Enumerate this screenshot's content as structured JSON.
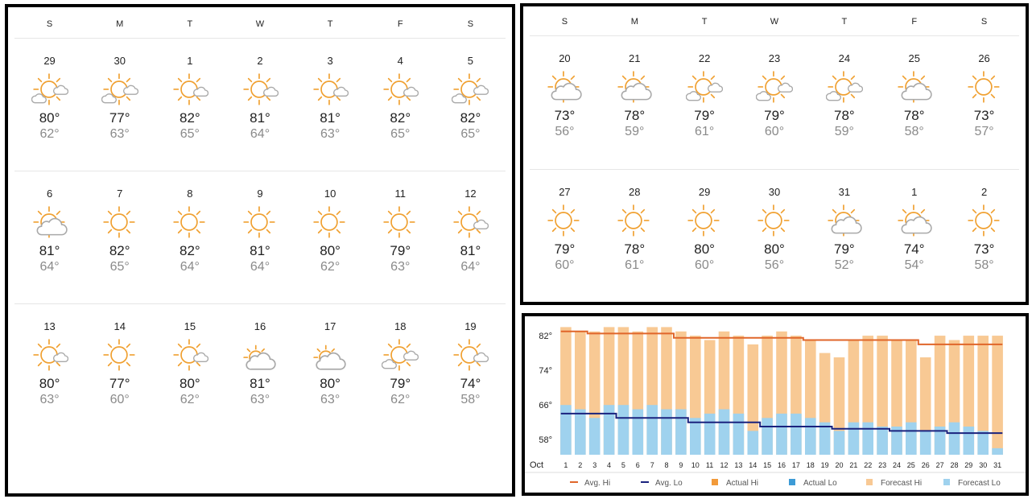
{
  "calendar_left": {
    "weekdays": [
      "S",
      "M",
      "T",
      "W",
      "T",
      "F",
      "S"
    ],
    "weeks": [
      [
        {
          "day": "29",
          "icon": "partly-cloudy-icon",
          "hi": "80°",
          "lo": "62°"
        },
        {
          "day": "30",
          "icon": "partly-cloudy-icon",
          "hi": "77°",
          "lo": "63°"
        },
        {
          "day": "1",
          "icon": "mostly-sunny-icon",
          "hi": "82°",
          "lo": "65°"
        },
        {
          "day": "2",
          "icon": "mostly-sunny-icon",
          "hi": "81°",
          "lo": "64°"
        },
        {
          "day": "3",
          "icon": "mostly-sunny-icon",
          "hi": "81°",
          "lo": "63°"
        },
        {
          "day": "4",
          "icon": "mostly-sunny-icon",
          "hi": "82°",
          "lo": "65°"
        },
        {
          "day": "5",
          "icon": "partly-cloudy-icon",
          "hi": "82°",
          "lo": "65°"
        }
      ],
      [
        {
          "day": "6",
          "icon": "sun-cloud-icon",
          "hi": "81°",
          "lo": "64°"
        },
        {
          "day": "7",
          "icon": "sunny-icon",
          "hi": "82°",
          "lo": "65°"
        },
        {
          "day": "8",
          "icon": "sunny-icon",
          "hi": "82°",
          "lo": "64°"
        },
        {
          "day": "9",
          "icon": "sunny-icon",
          "hi": "81°",
          "lo": "64°"
        },
        {
          "day": "10",
          "icon": "sunny-icon",
          "hi": "80°",
          "lo": "62°"
        },
        {
          "day": "11",
          "icon": "sunny-icon",
          "hi": "79°",
          "lo": "63°"
        },
        {
          "day": "12",
          "icon": "mostly-sunny-icon",
          "hi": "81°",
          "lo": "64°"
        }
      ],
      [
        {
          "day": "13",
          "icon": "mostly-sunny-icon",
          "hi": "80°",
          "lo": "63°"
        },
        {
          "day": "14",
          "icon": "sunny-icon",
          "hi": "77°",
          "lo": "60°"
        },
        {
          "day": "15",
          "icon": "mostly-sunny-icon",
          "hi": "80°",
          "lo": "62°"
        },
        {
          "day": "16",
          "icon": "mostly-cloudy-icon",
          "hi": "81°",
          "lo": "63°"
        },
        {
          "day": "17",
          "icon": "mostly-cloudy-icon",
          "hi": "80°",
          "lo": "63°"
        },
        {
          "day": "18",
          "icon": "partly-cloudy-icon",
          "hi": "79°",
          "lo": "62°"
        },
        {
          "day": "19",
          "icon": "mostly-sunny-icon",
          "hi": "74°",
          "lo": "58°"
        }
      ]
    ]
  },
  "calendar_right": {
    "weekdays": [
      "S",
      "M",
      "T",
      "W",
      "T",
      "F",
      "S"
    ],
    "weeks": [
      [
        {
          "day": "20",
          "icon": "sun-cloud-icon",
          "hi": "73°",
          "lo": "56°"
        },
        {
          "day": "21",
          "icon": "sun-cloud-icon",
          "hi": "78°",
          "lo": "59°"
        },
        {
          "day": "22",
          "icon": "partly-cloudy-icon",
          "hi": "79°",
          "lo": "61°"
        },
        {
          "day": "23",
          "icon": "partly-cloudy-icon",
          "hi": "79°",
          "lo": "60°"
        },
        {
          "day": "24",
          "icon": "partly-cloudy-icon",
          "hi": "78°",
          "lo": "59°"
        },
        {
          "day": "25",
          "icon": "sun-cloud-icon",
          "hi": "78°",
          "lo": "58°"
        },
        {
          "day": "26",
          "icon": "sunny-icon",
          "hi": "73°",
          "lo": "57°"
        }
      ],
      [
        {
          "day": "27",
          "icon": "sunny-icon",
          "hi": "79°",
          "lo": "60°"
        },
        {
          "day": "28",
          "icon": "sunny-icon",
          "hi": "78°",
          "lo": "61°"
        },
        {
          "day": "29",
          "icon": "sunny-icon",
          "hi": "80°",
          "lo": "60°"
        },
        {
          "day": "30",
          "icon": "sunny-icon",
          "hi": "80°",
          "lo": "56°"
        },
        {
          "day": "31",
          "icon": "sun-cloud-icon",
          "hi": "79°",
          "lo": "52°"
        },
        {
          "day": "1",
          "icon": "sun-cloud-icon",
          "hi": "74°",
          "lo": "54°"
        },
        {
          "day": "2",
          "icon": "sunny-icon",
          "hi": "73°",
          "lo": "58°"
        }
      ]
    ]
  },
  "colors": {
    "sun": "#f0a030",
    "cloud": "#a9a9a9",
    "avg_hi": "#e0662a",
    "avg_lo": "#1a237e",
    "actual_hi": "#f29a3a",
    "actual_lo": "#3d9bd6",
    "forecast_hi": "#f8c994",
    "forecast_lo": "#9fd2ee"
  },
  "chart_data": {
    "type": "bar",
    "month_label": "Oct",
    "categories": [
      "1",
      "2",
      "3",
      "4",
      "5",
      "6",
      "7",
      "8",
      "9",
      "10",
      "11",
      "12",
      "13",
      "14",
      "15",
      "16",
      "17",
      "18",
      "19",
      "20",
      "21",
      "22",
      "23",
      "24",
      "25",
      "26",
      "27",
      "28",
      "29",
      "30",
      "31"
    ],
    "y_ticks": [
      "82°",
      "74°",
      "66°",
      "58°"
    ],
    "y_tick_values": [
      82,
      74,
      66,
      58
    ],
    "ylim": [
      54.5,
      85
    ],
    "series": [
      {
        "name": "Forecast Hi",
        "kind": "bar",
        "values": [
          84,
          83,
          83,
          84,
          84,
          83,
          84,
          84,
          83,
          82,
          81,
          83,
          82,
          80,
          82,
          83,
          82,
          81,
          78,
          77,
          81,
          82,
          82,
          81,
          81,
          77,
          82,
          81,
          82,
          82,
          82
        ]
      },
      {
        "name": "Forecast Lo",
        "kind": "bar",
        "values": [
          66,
          65,
          63,
          66,
          66,
          65,
          66,
          65,
          65,
          63,
          64,
          65,
          64,
          60,
          63,
          64,
          64,
          63,
          62,
          60,
          62,
          62,
          61,
          61,
          62,
          60,
          61,
          62,
          61,
          60,
          56
        ]
      },
      {
        "name": "Avg. Hi",
        "kind": "line",
        "values": [
          83,
          83,
          82.5,
          82.5,
          82.5,
          82.5,
          82.5,
          82.5,
          81.5,
          81.5,
          81.5,
          81.5,
          81.5,
          81.5,
          81.5,
          81.5,
          81.5,
          81,
          81,
          81,
          81,
          81,
          81,
          81,
          81,
          80,
          80,
          80,
          80,
          80,
          80
        ]
      },
      {
        "name": "Avg. Lo",
        "kind": "line",
        "values": [
          64,
          64,
          64,
          64,
          63,
          63,
          63,
          63,
          63,
          62,
          62,
          62,
          62,
          62,
          61,
          61,
          61,
          61,
          61,
          60.5,
          60.5,
          60.5,
          60.5,
          60,
          60,
          60,
          60,
          59.5,
          59.5,
          59.5,
          59.5
        ]
      }
    ],
    "legend": [
      {
        "name": "Avg. Hi",
        "swatch": "line",
        "color": "#e0662a"
      },
      {
        "name": "Avg. Lo",
        "swatch": "line",
        "color": "#1a237e"
      },
      {
        "name": "Actual Hi",
        "swatch": "box",
        "color": "#f29a3a"
      },
      {
        "name": "Actual Lo",
        "swatch": "box",
        "color": "#3d9bd6"
      },
      {
        "name": "Forecast Hi",
        "swatch": "box",
        "color": "#f8c994"
      },
      {
        "name": "Forecast Lo",
        "swatch": "box",
        "color": "#9fd2ee"
      }
    ],
    "legend_position": "bottom",
    "grid": false
  }
}
